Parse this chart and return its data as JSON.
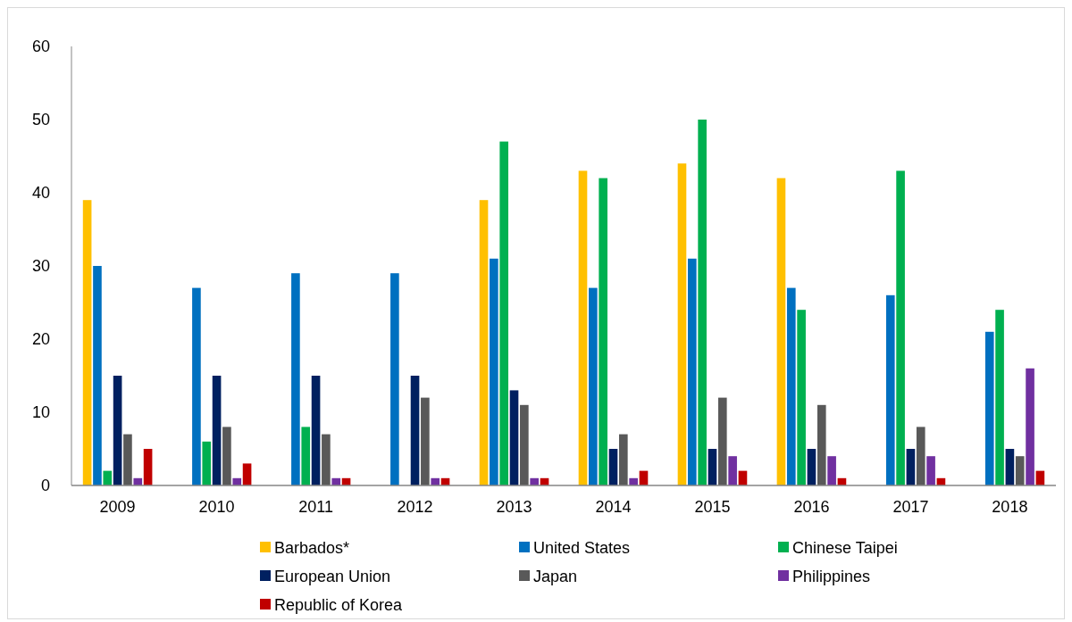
{
  "chart_data": {
    "type": "bar",
    "categories": [
      "2009",
      "2010",
      "2011",
      "2012",
      "2013",
      "2014",
      "2015",
      "2016",
      "2017",
      "2018"
    ],
    "series": [
      {
        "name": "Barbados*",
        "color": "#ffc000",
        "values": [
          39,
          null,
          null,
          null,
          39,
          43,
          44,
          42,
          null,
          null
        ]
      },
      {
        "name": "United States",
        "color": "#0070c0",
        "values": [
          30,
          27,
          29,
          29,
          31,
          27,
          31,
          27,
          26,
          21
        ]
      },
      {
        "name": "Chinese Taipei",
        "color": "#00b050",
        "values": [
          2,
          6,
          8,
          null,
          47,
          42,
          50,
          24,
          43,
          24
        ]
      },
      {
        "name": "European Union",
        "color": "#002060",
        "values": [
          15,
          15,
          15,
          15,
          13,
          5,
          5,
          5,
          5,
          5
        ]
      },
      {
        "name": "Japan",
        "color": "#595959",
        "values": [
          7,
          8,
          7,
          12,
          11,
          7,
          12,
          11,
          8,
          4
        ]
      },
      {
        "name": "Philippines",
        "color": "#7030a0",
        "values": [
          1,
          1,
          1,
          1,
          1,
          1,
          4,
          4,
          4,
          16
        ]
      },
      {
        "name": "Republic of Korea",
        "color": "#c00000",
        "values": [
          5,
          3,
          1,
          1,
          1,
          2,
          2,
          1,
          1,
          2
        ]
      }
    ],
    "ylim": [
      0,
      60
    ],
    "yticks": [
      0,
      10,
      20,
      30,
      40,
      50,
      60
    ],
    "grid": false,
    "legend": "bottom"
  }
}
